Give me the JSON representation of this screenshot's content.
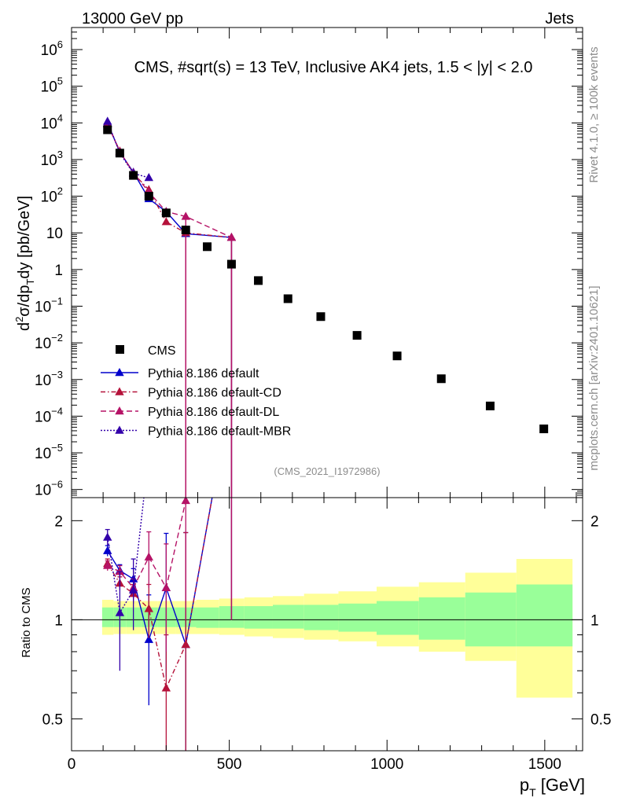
{
  "header": {
    "left": "13000 GeV pp",
    "right": "Jets"
  },
  "side": {
    "rivet": "Rivet 4.1.0, ≥ 100k events",
    "mcplots": "mcplots.cern.ch [arXiv:2401.10621]"
  },
  "chart_data": {
    "type": "scatter",
    "title": "CMS, #sqrt(s) = 13 TeV, Inclusive AK4 jets, 1.5 < |y| < 2.0",
    "analysis_id": "(CMS_2021_I1972986)",
    "xlabel": "p_T [GeV]",
    "ylabel": "d²σ/dp_T dy [pb/GeV]",
    "ratio_ylabel": "Ratio to CMS",
    "xlim": [
      0,
      1620
    ],
    "ylim": [
      6e-07,
      4000000.0
    ],
    "ratio_ylim": [
      0.4,
      2.35
    ],
    "x_ticks": [
      "0",
      "500",
      "1000",
      "1500"
    ],
    "y_tick_labels": [
      {
        "v": 1000000.0,
        "b": "10",
        "e": "6"
      },
      {
        "v": 100000.0,
        "b": "10",
        "e": "5"
      },
      {
        "v": 10000.0,
        "b": "10",
        "e": "4"
      },
      {
        "v": 1000.0,
        "b": "10",
        "e": "3"
      },
      {
        "v": 100.0,
        "b": "10",
        "e": "2"
      },
      {
        "v": 10,
        "b": "10",
        "e": ""
      },
      {
        "v": 1,
        "b": "1",
        "e": ""
      },
      {
        "v": 0.1,
        "b": "10",
        "e": "−1"
      },
      {
        "v": 0.01,
        "b": "10",
        "e": "−2"
      },
      {
        "v": 0.001,
        "b": "10",
        "e": "−3"
      },
      {
        "v": 0.0001,
        "b": "10",
        "e": "−4"
      },
      {
        "v": 1e-05,
        "b": "10",
        "e": "−5"
      },
      {
        "v": 1e-06,
        "b": "10",
        "e": "−6"
      }
    ],
    "ratio_tick_labels": [
      "0.5",
      "1",
      "2"
    ],
    "data": {
      "name": "CMS",
      "x": [
        114,
        153,
        196,
        245,
        300,
        362,
        430,
        507,
        592,
        686,
        790,
        905,
        1032,
        1172,
        1327,
        1497
      ],
      "y": [
        6500,
        1500,
        370,
        100,
        35,
        12,
        4.2,
        1.4,
        0.5,
        0.16,
        0.052,
        0.016,
        0.0044,
        0.00105,
        0.00019,
        4.5e-05
      ]
    },
    "bins": [
      97,
      133,
      174,
      220,
      272,
      330,
      395,
      468,
      548,
      638,
      737,
      846,
      967,
      1101,
      1248,
      1410,
      1588
    ],
    "band_inner": [
      [
        0.95,
        1.09
      ],
      [
        0.95,
        1.09
      ],
      [
        0.95,
        1.09
      ],
      [
        0.95,
        1.09
      ],
      [
        0.95,
        1.09
      ],
      [
        0.95,
        1.09
      ],
      [
        0.945,
        1.09
      ],
      [
        0.945,
        1.1
      ],
      [
        0.94,
        1.1
      ],
      [
        0.94,
        1.11
      ],
      [
        0.93,
        1.11
      ],
      [
        0.92,
        1.12
      ],
      [
        0.9,
        1.14
      ],
      [
        0.87,
        1.17
      ],
      [
        0.83,
        1.21
      ],
      [
        0.83,
        1.28
      ]
    ],
    "band_outer": [
      [
        0.9,
        1.15
      ],
      [
        0.905,
        1.14
      ],
      [
        0.905,
        1.14
      ],
      [
        0.905,
        1.14
      ],
      [
        0.905,
        1.14
      ],
      [
        0.905,
        1.14
      ],
      [
        0.905,
        1.15
      ],
      [
        0.9,
        1.16
      ],
      [
        0.89,
        1.17
      ],
      [
        0.88,
        1.18
      ],
      [
        0.87,
        1.2
      ],
      [
        0.86,
        1.22
      ],
      [
        0.83,
        1.26
      ],
      [
        0.8,
        1.3
      ],
      [
        0.75,
        1.39
      ],
      [
        0.58,
        1.53
      ]
    ],
    "series": [
      {
        "name": "Pythia 8.186 default",
        "color": "#0000cc",
        "dash": "",
        "filled": true,
        "x": [
          114,
          153,
          196,
          245,
          300,
          362,
          507
        ],
        "y": [
          10000,
          1600,
          450,
          85,
          38,
          9.5,
          7.5
        ],
        "ratio": [
          1.62,
          1.41,
          1.33,
          0.87,
          1.25,
          0.84,
          5.0
        ],
        "ratio_err": [
          0.06,
          0.06,
          0.1,
          0.32,
          0.58,
          1.0,
          4.0
        ]
      },
      {
        "name": "Pythia 8.186 default-CD",
        "color": "#b5123a",
        "dash": "6,3,1.5,3",
        "filled": true,
        "x": [
          114,
          153,
          196,
          245,
          300,
          362,
          507
        ],
        "y": [
          9500,
          1700,
          420,
          150,
          20,
          10,
          7.5
        ],
        "ratio": [
          1.48,
          1.29,
          1.2,
          1.08,
          0.62,
          0.84,
          5.0
        ],
        "ratio_err": [
          0.05,
          0.06,
          0.08,
          0.2,
          0.28,
          1.0,
          4.0
        ]
      },
      {
        "name": "Pythia 8.186 default-DL",
        "color": "#b51266",
        "dash": "7,4",
        "filled": true,
        "x": [
          114,
          153,
          196,
          245,
          300,
          362,
          507
        ],
        "y": [
          9300,
          1650,
          440,
          130,
          38,
          28,
          7.5
        ],
        "ratio": [
          1.46,
          1.4,
          1.25,
          1.55,
          1.25,
          2.3,
          5.0
        ],
        "ratio_err": [
          0.05,
          0.06,
          0.08,
          0.3,
          0.45,
          1.3,
          4.0
        ]
      },
      {
        "name": "Pythia 8.186 default-MBR",
        "color": "#3300aa",
        "dash": "2,2",
        "filled": true,
        "x": [
          114,
          153,
          196,
          245
        ],
        "y": [
          11000,
          1500,
          420,
          320
        ],
        "ratio": [
          1.78,
          1.05,
          1.23,
          3.2
        ],
        "ratio_err": [
          0.1,
          0.35,
          0.3,
          0.6
        ]
      }
    ]
  }
}
